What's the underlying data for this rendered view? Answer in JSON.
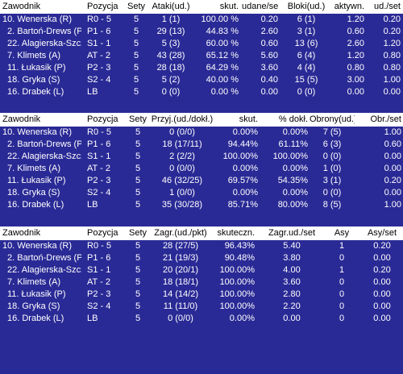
{
  "attack": {
    "headers": [
      "Zawodnik",
      "Pozycja",
      "Sety",
      "Ataki(ud.)",
      "skut.",
      "udane/set",
      "Bloki(ud.)",
      "aktywn.",
      "ud./set"
    ],
    "rows": [
      [
        "10. Wenerska (R)",
        "R0 - 5",
        "5",
        "1 (1)",
        "100.00 %",
        "0.20",
        "6 (1)",
        "1.20",
        "0.20"
      ],
      [
        "2. Bartoń-Drews (P)",
        "P1 - 6",
        "5",
        "29 (13)",
        "44.83 %",
        "2.60",
        "3 (1)",
        "0.60",
        "0.20"
      ],
      [
        "22. Alagierska-Szcze...",
        "S1 - 1",
        "5",
        "5 (3)",
        "60.00 %",
        "0.60",
        "13 (6)",
        "2.60",
        "1.20"
      ],
      [
        "7. Klimets (A)",
        "AT - 2",
        "5",
        "43 (28)",
        "65.12 %",
        "5.60",
        "6 (4)",
        "1.20",
        "0.80"
      ],
      [
        "11. Łukasik (P)",
        "P2 - 3",
        "5",
        "28 (18)",
        "64.29 %",
        "3.60",
        "4 (4)",
        "0.80",
        "0.80"
      ],
      [
        "18. Gryka (S)",
        "S2 - 4",
        "5",
        "5 (2)",
        "40.00 %",
        "0.40",
        "15 (5)",
        "3.00",
        "1.00"
      ],
      [
        "16. Drabek (L)",
        "LB",
        "5",
        "0 (0)",
        "0.00 %",
        "0.00",
        "0 (0)",
        "0.00",
        "0.00"
      ]
    ]
  },
  "reception": {
    "headers": [
      "Zawodnik",
      "Pozycja",
      "Sety",
      "Przyj.(ud./dokł.)",
      "skut.",
      "% dokł.",
      "Obrony(ud.)",
      "Obr./set"
    ],
    "rows": [
      [
        "10. Wenerska (R)",
        "R0 - 5",
        "5",
        "0 (0/0)",
        "0.00%",
        "0.00%",
        "7 (5)",
        "1.00"
      ],
      [
        "2. Bartoń-Drews (P)",
        "P1 - 6",
        "5",
        "18 (17/11)",
        "94.44%",
        "61.11%",
        "6 (3)",
        "0.60"
      ],
      [
        "22. Alagierska-Szcze...",
        "S1 - 1",
        "5",
        "2 (2/2)",
        "100.00%",
        "100.00%",
        "0 (0)",
        "0.00"
      ],
      [
        "7. Klimets (A)",
        "AT - 2",
        "5",
        "0 (0/0)",
        "0.00%",
        "0.00%",
        "1 (0)",
        "0.00"
      ],
      [
        "11. Łukasik (P)",
        "P2 - 3",
        "5",
        "46 (32/25)",
        "69.57%",
        "54.35%",
        "3 (1)",
        "0.20"
      ],
      [
        "18. Gryka (S)",
        "S2 - 4",
        "5",
        "1 (0/0)",
        "0.00%",
        "0.00%",
        "0 (0)",
        "0.00"
      ],
      [
        "16. Drabek (L)",
        "LB",
        "5",
        "35 (30/28)",
        "85.71%",
        "80.00%",
        "8 (5)",
        "1.00"
      ]
    ]
  },
  "serve": {
    "headers": [
      "Zawodnik",
      "Pozycja",
      "Sety",
      "Zagr.(ud./pkt)",
      "skuteczn.",
      "Zagr.ud./set",
      "Asy",
      "Asy/set"
    ],
    "rows": [
      [
        "10. Wenerska (R)",
        "R0 - 5",
        "5",
        "28 (27/5)",
        "96.43%",
        "5.40",
        "1",
        "0.20"
      ],
      [
        "2. Bartoń-Drews (P)",
        "P1 - 6",
        "5",
        "21 (19/3)",
        "90.48%",
        "3.80",
        "0",
        "0.00"
      ],
      [
        "22. Alagierska-Szcze...",
        "S1 - 1",
        "5",
        "20 (20/1)",
        "100.00%",
        "4.00",
        "1",
        "0.20"
      ],
      [
        "7. Klimets (A)",
        "AT - 2",
        "5",
        "18 (18/1)",
        "100.00%",
        "3.60",
        "0",
        "0.00"
      ],
      [
        "11. Łukasik (P)",
        "P2 - 3",
        "5",
        "14 (14/2)",
        "100.00%",
        "2.80",
        "0",
        "0.00"
      ],
      [
        "18. Gryka (S)",
        "S2 - 4",
        "5",
        "11 (11/0)",
        "100.00%",
        "2.20",
        "0",
        "0.00"
      ],
      [
        "16. Drabek (L)",
        "LB",
        "5",
        "0 (0/0)",
        "0.00%",
        "0.00",
        "0",
        "0.00"
      ]
    ]
  }
}
